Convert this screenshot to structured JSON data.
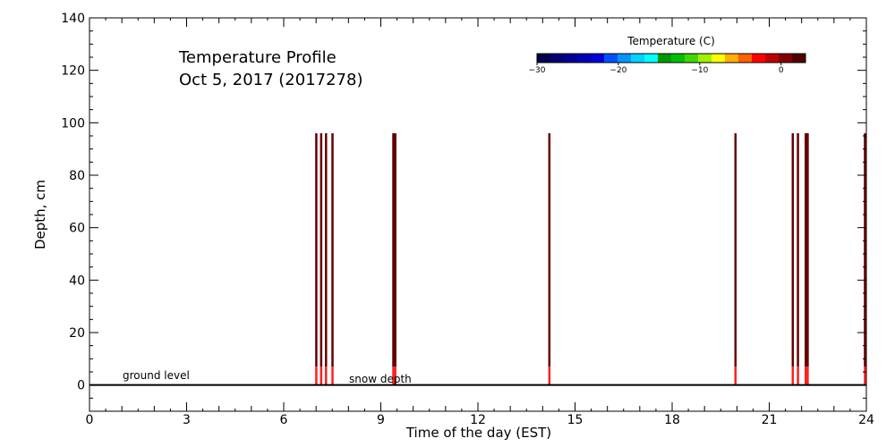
{
  "chart_data": {
    "type": "heatmap",
    "title_line1": "Temperature Profile",
    "title_line2": "Oct  5, 2017 (2017278)",
    "xlabel": "Time of the day (EST)",
    "ylabel": "Depth, cm",
    "xlim": [
      0,
      24
    ],
    "ylim": [
      -10,
      140
    ],
    "x_ticks": [
      0,
      3,
      6,
      9,
      12,
      15,
      18,
      21,
      24
    ],
    "y_ticks": [
      0,
      20,
      40,
      60,
      80,
      100,
      120,
      140
    ],
    "x_tick_labels": [
      "0",
      "3",
      "6",
      "9",
      "12",
      "15",
      "18",
      "21",
      "24"
    ],
    "y_tick_labels": [
      "0",
      "20",
      "40",
      "60",
      "80",
      "100",
      "120",
      "140"
    ],
    "profile_top_depth": 96,
    "profile_warm_band_top": 7,
    "profile_times": [
      7.0,
      7.15,
      7.3,
      7.5,
      9.38,
      9.44,
      14.2,
      19.95,
      21.72,
      21.88,
      22.12,
      22.18,
      23.95
    ],
    "annotations": {
      "ground_level": "ground level",
      "snow_depth": "snow depth"
    },
    "ground_level_value": 0,
    "grid": false,
    "colorbar": {
      "title": "Temperature (C)",
      "range": [
        -30,
        3
      ],
      "ticks": [
        -30,
        -20,
        -10,
        0
      ],
      "tick_labels": [
        "−30",
        "−20",
        "−10",
        "0"
      ],
      "colors": [
        "#00004e",
        "#000073",
        "#000093",
        "#0000b5",
        "#0000dc",
        "#0050ff",
        "#0096ff",
        "#00d4ff",
        "#00ffff",
        "#009a00",
        "#00c000",
        "#40d800",
        "#a0f000",
        "#ffff00",
        "#ffb000",
        "#ff6000",
        "#ff0000",
        "#c00000",
        "#800000",
        "#500000"
      ]
    },
    "series_colors": {
      "profile_main": "#650000",
      "profile_warm": "#ff2020",
      "ground_line": "#000000"
    }
  }
}
